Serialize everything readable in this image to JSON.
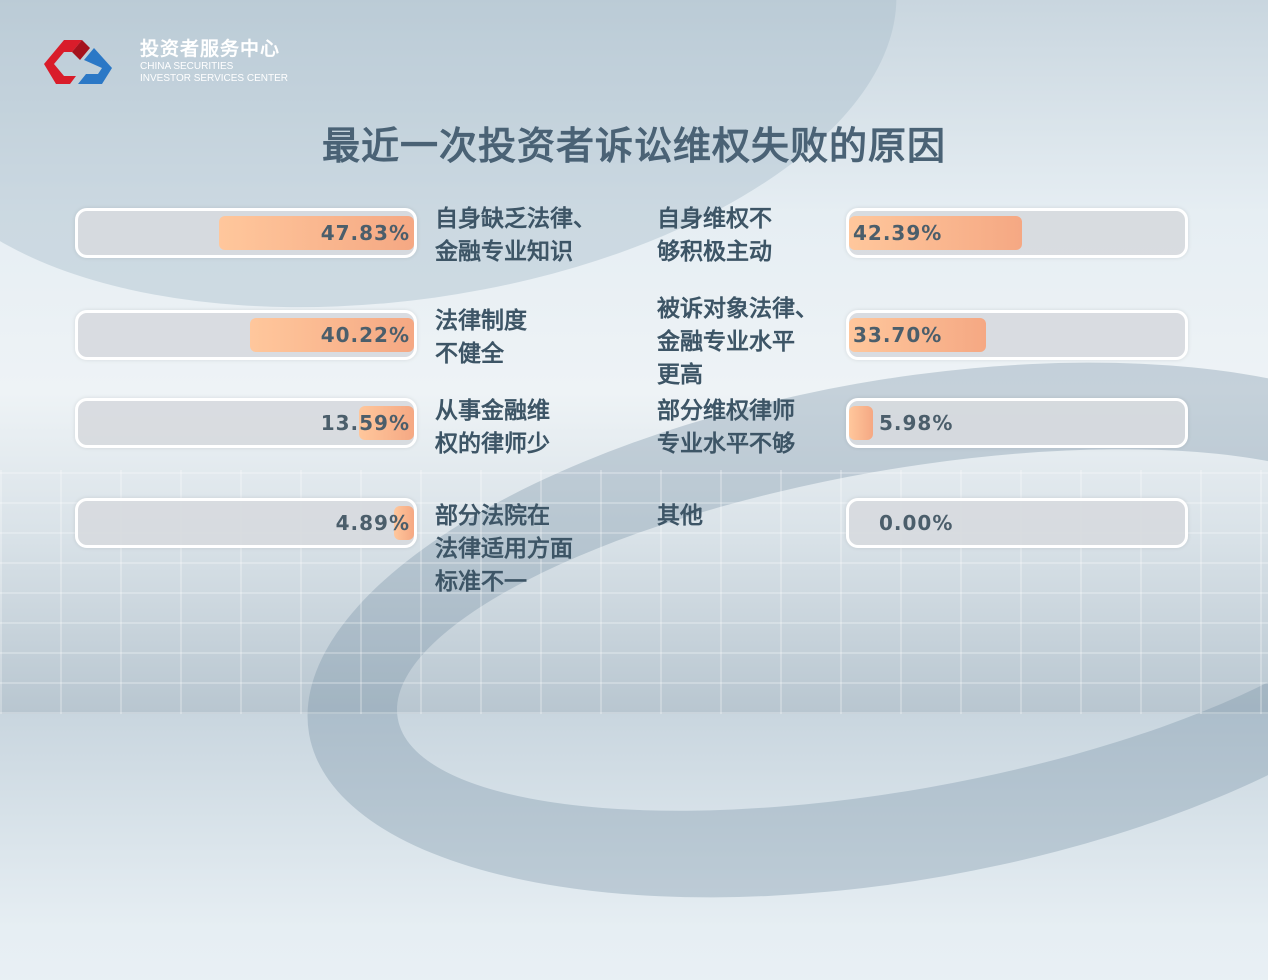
{
  "header": {
    "org_cn": "投资者服务中心",
    "org_en1": "CHINA SECURITIES",
    "org_en2": "INVESTOR SERVICES CENTER"
  },
  "chart_data": {
    "type": "bar",
    "title": "最近一次投资者诉讼维权失败的原因",
    "categories": [
      "自身缺乏法律、\n金融专业知识",
      "自身维权不\n够积极主动",
      "法律制度\n不健全",
      "被诉对象法律、\n金融专业水平\n更高",
      "从事金融维\n权的律师少",
      "部分维权律师\n专业水平不够",
      "部分法院在\n法律适用方面\n标准不一",
      "其他"
    ],
    "values": [
      47.83,
      42.39,
      40.22,
      33.7,
      13.59,
      5.98,
      4.89,
      0.0
    ],
    "labels": [
      "47.83%",
      "42.39%",
      "40.22%",
      "33.70%",
      "13.59%",
      "5.98%",
      "4.89%",
      "0.00%"
    ],
    "unit": "%",
    "colors": {
      "fill": "#f9b68c",
      "track": "#d7dade"
    }
  }
}
